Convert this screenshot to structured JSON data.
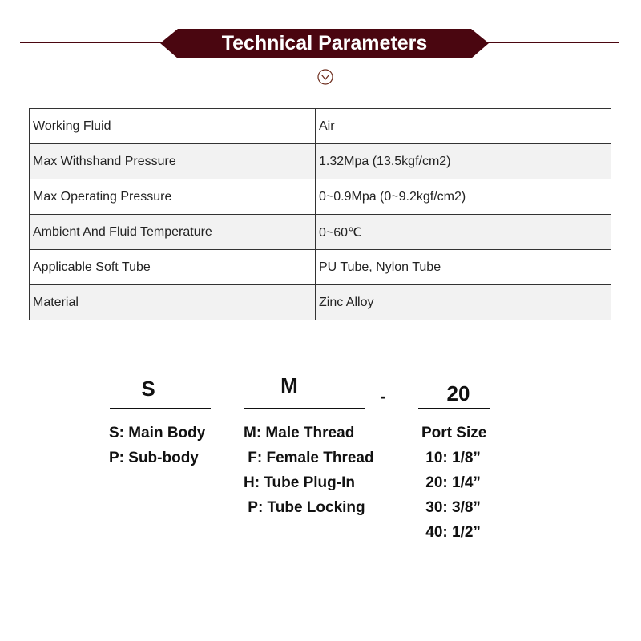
{
  "header": {
    "title": "Technical Parameters",
    "icon": "chevron-down-circle-icon",
    "accent": "#4a0610"
  },
  "specs": [
    {
      "label": "Working Fluid",
      "value": "Air"
    },
    {
      "label": "Max Withshand Pressure",
      "value": "1.32Mpa (13.5kgf/cm2)"
    },
    {
      "label": "Max Operating Pressure",
      "value": "0~0.9Mpa (0~9.2kgf/cm2)"
    },
    {
      "label": "Ambient And Fluid Temperature",
      "value": "0~60℃"
    },
    {
      "label": "Applicable Soft Tube",
      "value": "PU Tube, Nylon Tube"
    },
    {
      "label": "Material",
      "value": "Zinc Alloy"
    }
  ],
  "code": {
    "parts": [
      "S",
      "M",
      "20"
    ],
    "separator": "-",
    "body": [
      "S: Main Body",
      "P: Sub-body"
    ],
    "thread": [
      "M: Male Thread",
      " F: Female Thread",
      "H: Tube Plug-In",
      " P: Tube Locking"
    ],
    "port": [
      "Port Size",
      " 10: 1/8”",
      " 20: 1/4”",
      " 30: 3/8”",
      " 40: 1/2”"
    ]
  }
}
